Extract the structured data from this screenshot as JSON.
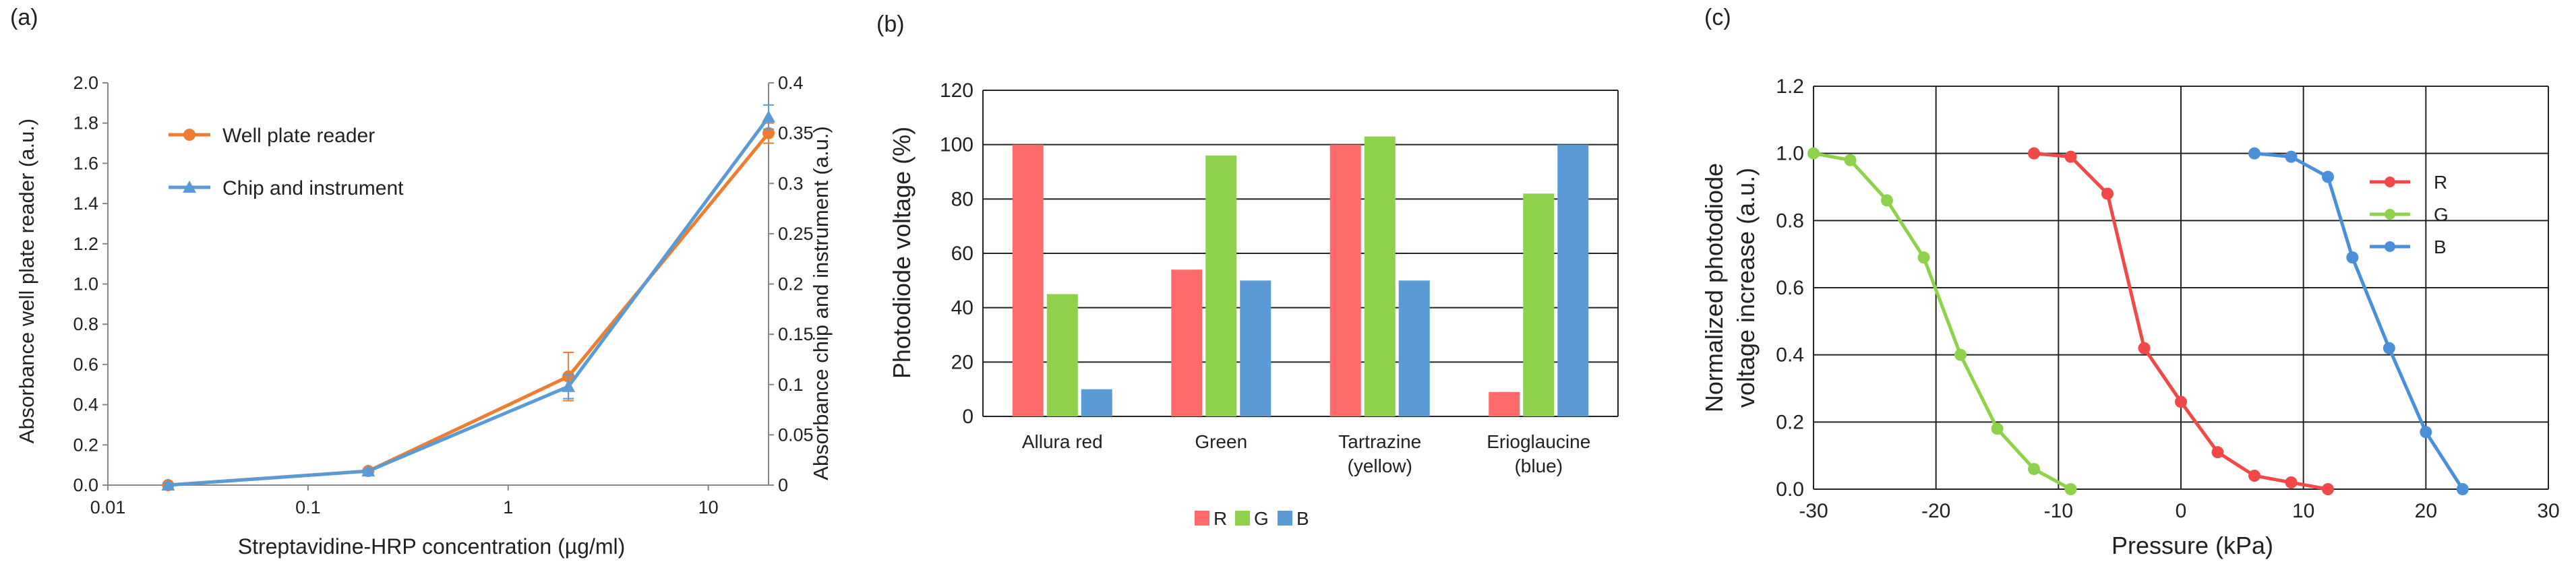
{
  "panels": [
    {
      "label": "(a)"
    },
    {
      "label": "(b)"
    },
    {
      "label": "(c)"
    }
  ],
  "chart_data": [
    {
      "id": "a",
      "type": "line",
      "xscale": "log",
      "xlabel": "Streptavidine-HRP concentration (µg/ml)",
      "ylabel": "Absorbance well plate reader (a.u.)",
      "y2label": "Absorbance chip and instrument (a.u.)",
      "xlim": [
        0.01,
        20
      ],
      "ylim": [
        0,
        2.0
      ],
      "y2lim": [
        0,
        0.4
      ],
      "xticks": [
        "0.01",
        "0.1",
        "1",
        "10"
      ],
      "yticks": [
        "0.0",
        "0.2",
        "0.4",
        "0.6",
        "0.8",
        "1.0",
        "1.2",
        "1.4",
        "1.6",
        "1.8",
        "2.0"
      ],
      "y2ticks": [
        "0",
        "0.05",
        "0.1",
        "0.15",
        "0.2",
        "0.25",
        "0.3",
        "0.35",
        "0.4"
      ],
      "grid": false,
      "legend": "top-left",
      "series": [
        {
          "name": "Well plate reader",
          "axis": "left",
          "color": "#ED7D31",
          "marker": "circle",
          "x": [
            0.02,
            0.2,
            2,
            20
          ],
          "y": [
            0.0,
            0.07,
            0.54,
            1.75
          ],
          "yerr": [
            0.01,
            0.01,
            0.12,
            0.05
          ]
        },
        {
          "name": "Chip and instrument",
          "axis": "right",
          "color": "#5B9BD5",
          "marker": "triangle",
          "x": [
            0.02,
            0.2,
            2,
            20
          ],
          "y": [
            0.0,
            0.014,
            0.098,
            0.366
          ],
          "yerr": [
            0.002,
            0.002,
            0.012,
            0.012
          ]
        }
      ]
    },
    {
      "id": "b",
      "type": "bar",
      "ylabel": "Photodiode voltage (%)",
      "ylim": [
        0,
        120
      ],
      "yticks": [
        "0",
        "20",
        "40",
        "60",
        "80",
        "100",
        "120"
      ],
      "grid": true,
      "legend": "bottom",
      "categories": [
        {
          "line1": "Allura red",
          "line2": ""
        },
        {
          "line1": "Green",
          "line2": ""
        },
        {
          "line1": "Tartrazine",
          "line2": "(yellow)"
        },
        {
          "line1": "Erioglaucine",
          "line2": "(blue)"
        }
      ],
      "series": [
        {
          "name": "R",
          "color": "#FF6B6B",
          "values": [
            100,
            54,
            100,
            9
          ]
        },
        {
          "name": "G",
          "color": "#8ED14A",
          "values": [
            45,
            96,
            103,
            82
          ]
        },
        {
          "name": "B",
          "color": "#5B9BD5",
          "values": [
            10,
            50,
            50,
            100
          ]
        }
      ]
    },
    {
      "id": "c",
      "type": "line",
      "xlabel": "Pressure (kPa)",
      "ylabel_line1": "Normalized photodiode",
      "ylabel_line2": "voltage increase (a.u.)",
      "xlim": [
        -30,
        30
      ],
      "ylim": [
        0,
        1.2
      ],
      "xticks": [
        "-30",
        "-20",
        "-10",
        "0",
        "10",
        "20",
        "30"
      ],
      "yticks": [
        "0.0",
        "0.2",
        "0.4",
        "0.6",
        "0.8",
        "1.0",
        "1.2"
      ],
      "grid": true,
      "legend": "right",
      "series": [
        {
          "name": "R",
          "color": "#F14848",
          "x": [
            -12,
            -9,
            -6,
            -3,
            0,
            3,
            6,
            9,
            12
          ],
          "y": [
            1.0,
            0.99,
            0.88,
            0.42,
            0.26,
            0.11,
            0.04,
            0.02,
            0.0
          ]
        },
        {
          "name": "G",
          "color": "#8ED14A",
          "x": [
            -30,
            -27,
            -24,
            -21,
            -18,
            -15,
            -12,
            -9
          ],
          "y": [
            1.0,
            0.98,
            0.86,
            0.69,
            0.4,
            0.18,
            0.06,
            0.0
          ]
        },
        {
          "name": "B",
          "color": "#4A90D9",
          "x": [
            6,
            9,
            12,
            14,
            17,
            20,
            23
          ],
          "y": [
            1.0,
            0.99,
            0.93,
            0.69,
            0.42,
            0.17,
            0.0
          ]
        }
      ]
    }
  ]
}
